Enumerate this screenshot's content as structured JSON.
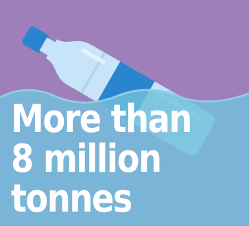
{
  "headline": {
    "line1": "More than",
    "line2": "8 million",
    "line3": "tonnes"
  },
  "illustration": {
    "icon": "plastic-bottle-icon",
    "subject": "water-waves"
  },
  "colors": {
    "background": "#9e7fba",
    "water": "#72bfdc",
    "bottle_light": "#c7e4f8",
    "bottle_band": "#2a85cf",
    "cap": "#2a85cf",
    "text": "#ffffff"
  }
}
